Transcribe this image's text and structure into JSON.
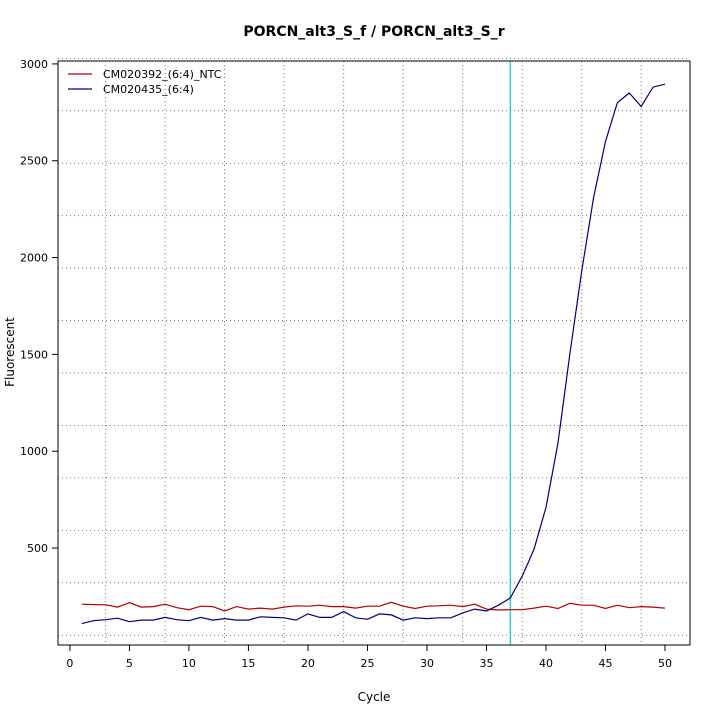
{
  "chart_data": {
    "type": "line",
    "title": "PORCN_alt3_S_f / PORCN_alt3_S_r",
    "xlabel": "Cycle",
    "ylabel": "Fluorescent",
    "xlim": [
      -1.0,
      52.1
    ],
    "ylim": [
      -0.5,
      3015
    ],
    "xticks": [
      0,
      5,
      10,
      15,
      20,
      25,
      30,
      35,
      40,
      45,
      50
    ],
    "yticks": [
      500,
      1000,
      1500,
      2000,
      2500,
      3000
    ],
    "grid": true,
    "legend_position": "top-left",
    "threshold_line": {
      "x": 37.0,
      "color": "#00cccc"
    },
    "series": [
      {
        "name": "CM020392_(6:4)_NTC",
        "color": "#b30000",
        "x": [
          1,
          2,
          3,
          4,
          5,
          6,
          7,
          8,
          9,
          10,
          11,
          12,
          13,
          14,
          15,
          16,
          17,
          18,
          19,
          20,
          21,
          22,
          23,
          24,
          25,
          26,
          27,
          28,
          29,
          30,
          31,
          32,
          33,
          34,
          35,
          36,
          37,
          38,
          39,
          40,
          41,
          42,
          43,
          44,
          45,
          46,
          47,
          48,
          49,
          50
        ],
        "y": [
          210,
          208,
          207,
          195,
          218,
          195,
          198,
          210,
          192,
          182,
          200,
          198,
          175,
          198,
          185,
          190,
          185,
          195,
          202,
          200,
          205,
          198,
          198,
          190,
          200,
          200,
          220,
          200,
          188,
          200,
          202,
          205,
          198,
          210,
          185,
          180,
          182,
          182,
          190,
          200,
          188,
          215,
          205,
          205,
          188,
          205,
          192,
          198,
          195,
          190
        ]
      },
      {
        "name": "CM020435_(6:4)",
        "color": "#000080",
        "x": [
          1,
          2,
          3,
          4,
          5,
          6,
          7,
          8,
          9,
          10,
          11,
          12,
          13,
          14,
          15,
          16,
          17,
          18,
          19,
          20,
          21,
          22,
          23,
          24,
          25,
          26,
          27,
          28,
          29,
          30,
          31,
          32,
          33,
          34,
          35,
          36,
          37,
          38,
          39,
          40,
          41,
          42,
          43,
          44,
          45,
          46,
          47,
          48,
          49,
          50
        ],
        "y": [
          110,
          125,
          130,
          138,
          120,
          128,
          128,
          142,
          130,
          125,
          142,
          128,
          136,
          128,
          128,
          145,
          142,
          140,
          128,
          160,
          142,
          142,
          172,
          140,
          132,
          160,
          155,
          128,
          140,
          136,
          140,
          140,
          165,
          185,
          175,
          205,
          242,
          355,
          495,
          710,
          1040,
          1500,
          1930,
          2310,
          2600,
          2800,
          2850,
          2780,
          2880,
          2895
        ]
      }
    ]
  }
}
